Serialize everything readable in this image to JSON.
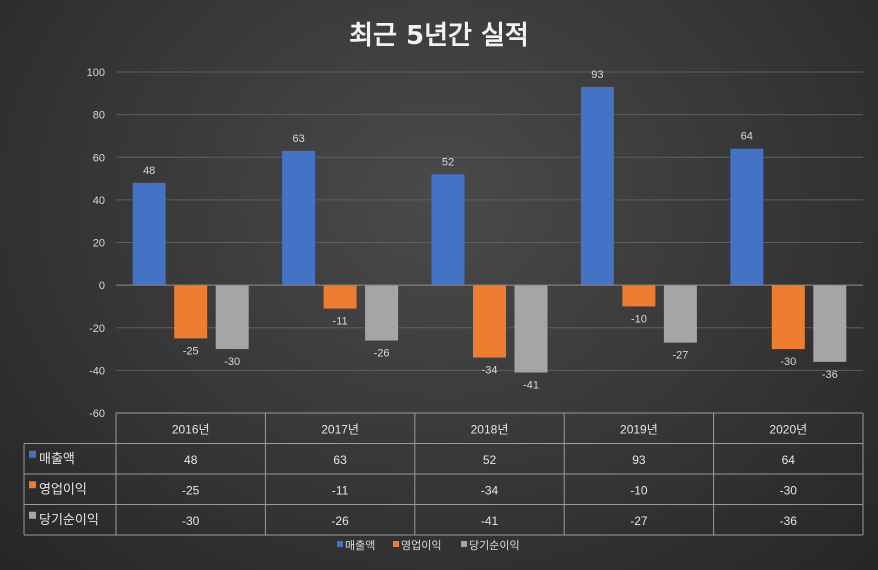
{
  "chart_data": {
    "type": "bar",
    "title": "최근 5년간 실적",
    "categories": [
      "2016년",
      "2017년",
      "2018년",
      "2019년",
      "2020년"
    ],
    "series": [
      {
        "name": "매출액",
        "values": [
          48,
          63,
          52,
          93,
          64
        ],
        "color": "#4472c4"
      },
      {
        "name": "영업이익",
        "values": [
          -25,
          -11,
          -34,
          -10,
          -30
        ],
        "color": "#ed7d31"
      },
      {
        "name": "당기순이익",
        "values": [
          -30,
          -26,
          -41,
          -27,
          -36
        ],
        "color": "#a5a5a5"
      }
    ],
    "ylim": [
      -60,
      100
    ],
    "yticks": [
      "100",
      "80",
      "60",
      "40",
      "20",
      "0",
      "-20",
      "-40",
      "-60"
    ],
    "grid": true,
    "data_table": true,
    "legend": "bottom"
  }
}
